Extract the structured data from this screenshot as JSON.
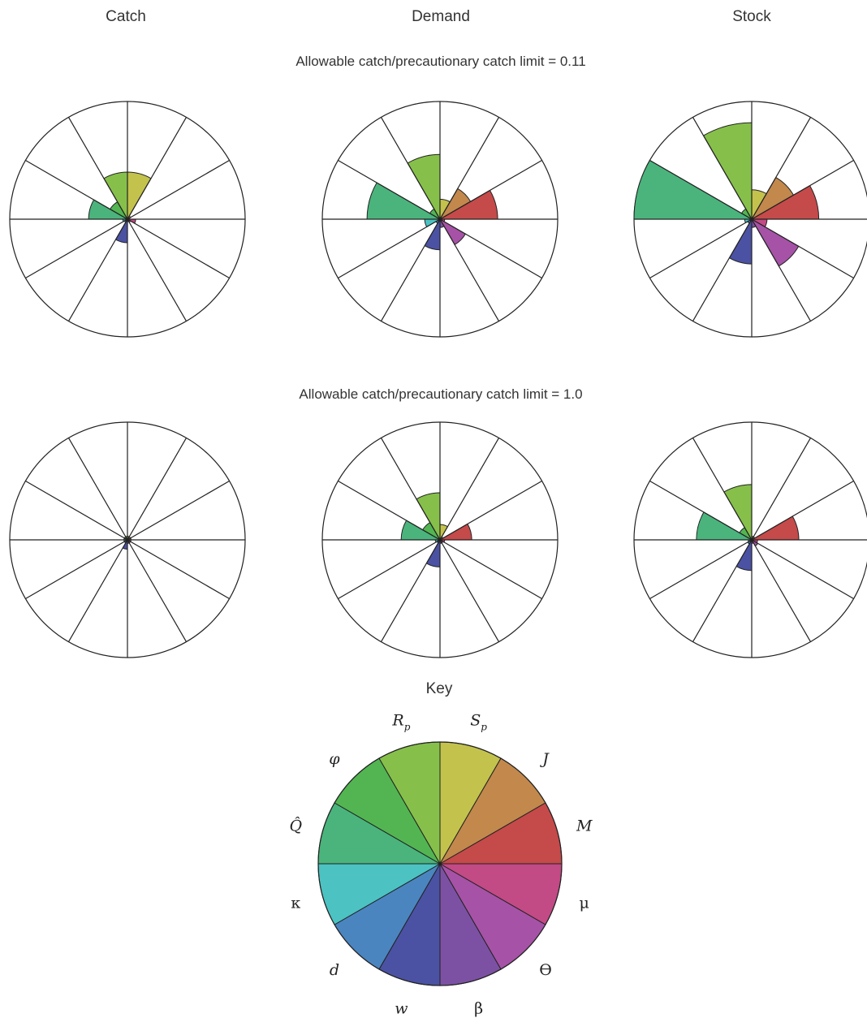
{
  "columns": [
    "Catch",
    "Demand",
    "Stock"
  ],
  "rows": [
    {
      "title": "Allowable catch/precautionary catch limit = 0.11"
    },
    {
      "title": "Allowable catch/precautionary catch limit = 1.0"
    }
  ],
  "key_title": "Key",
  "sectors": [
    {
      "symbol": "Sp",
      "color": "#c3c24d"
    },
    {
      "symbol": "J",
      "color": "#c2884c"
    },
    {
      "symbol": "M",
      "color": "#c54a4a"
    },
    {
      "symbol": "μ",
      "color": "#c24a85"
    },
    {
      "symbol": "ϴ",
      "color": "#a652a6"
    },
    {
      "symbol": "β",
      "color": "#7c51a3"
    },
    {
      "symbol": "w",
      "color": "#4b52a3"
    },
    {
      "symbol": "d",
      "color": "#4a85c0"
    },
    {
      "symbol": "κ",
      "color": "#4cc2c2"
    },
    {
      "symbol": "Q̂",
      "color": "#4ab47c"
    },
    {
      "symbol": "φ",
      "color": "#52b552"
    },
    {
      "symbol": "Rp",
      "color": "#86c04a"
    }
  ],
  "chart_data": [
    {
      "type": "polar-area",
      "row": 0,
      "column": "Catch",
      "scale": [
        0,
        1
      ],
      "values": [
        0.4,
        0.03,
        0.02,
        0.07,
        0.03,
        0.02,
        0.2,
        0.03,
        0.04,
        0.33,
        0.17,
        0.4
      ]
    },
    {
      "type": "polar-area",
      "row": 0,
      "column": "Demand",
      "scale": [
        0,
        1
      ],
      "values": [
        0.17,
        0.3,
        0.49,
        0.04,
        0.25,
        0.07,
        0.26,
        0.04,
        0.13,
        0.62,
        0.1,
        0.55
      ]
    },
    {
      "type": "polar-area",
      "row": 0,
      "column": "Stock",
      "scale": [
        0,
        1
      ],
      "values": [
        0.25,
        0.41,
        0.57,
        0.13,
        0.46,
        0.07,
        0.38,
        0.04,
        0.06,
        1.0,
        0.1,
        0.82
      ]
    },
    {
      "type": "polar-area",
      "row": 1,
      "column": "Catch",
      "scale": [
        0,
        1
      ],
      "values": [
        0.03,
        0.03,
        0.03,
        0.03,
        0.03,
        0.03,
        0.08,
        0.03,
        0.03,
        0.03,
        0.03,
        0.03
      ]
    },
    {
      "type": "polar-area",
      "row": 1,
      "column": "Demand",
      "scale": [
        0,
        1
      ],
      "values": [
        0.13,
        0.03,
        0.27,
        0.04,
        0.03,
        0.03,
        0.23,
        0.03,
        0.04,
        0.33,
        0.17,
        0.4
      ]
    },
    {
      "type": "polar-area",
      "row": 1,
      "column": "Stock",
      "scale": [
        0,
        1
      ],
      "values": [
        0.03,
        0.03,
        0.4,
        0.05,
        0.06,
        0.03,
        0.26,
        0.04,
        0.03,
        0.47,
        0.12,
        0.47
      ]
    }
  ]
}
